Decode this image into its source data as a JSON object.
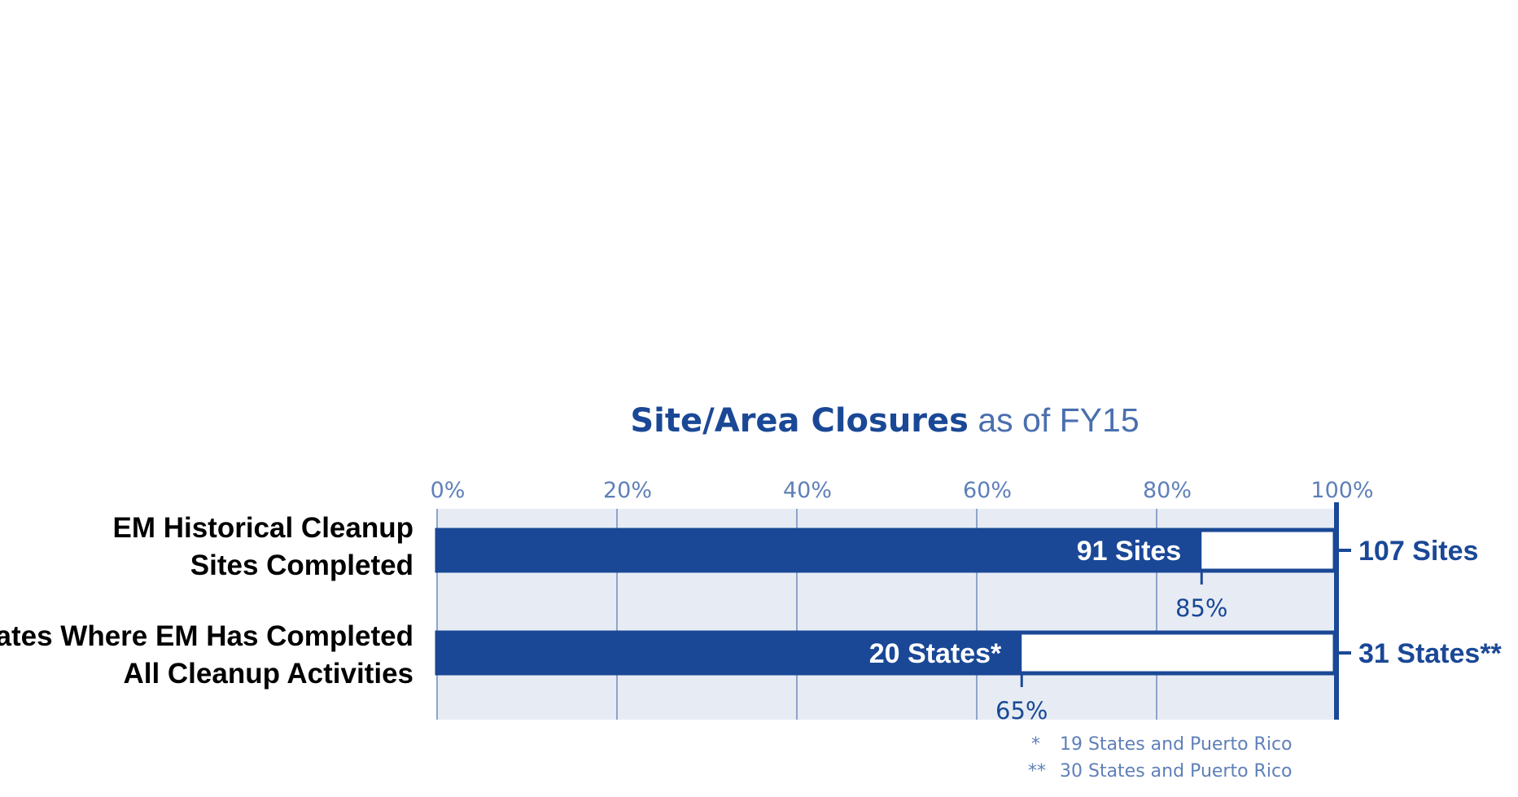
{
  "chart_data": {
    "type": "bar",
    "orientation": "horizontal",
    "title_bold": "Site/Area Closures",
    "title_rest": " as of FY15",
    "xlim": [
      0,
      100
    ],
    "ticks": [
      "0%",
      "20%",
      "40%",
      "60%",
      "80%",
      "100%"
    ],
    "tick_values": [
      0,
      20,
      40,
      60,
      80,
      100
    ],
    "grid": true,
    "bars": [
      {
        "category_lines": [
          "EM Historical Cleanup",
          "Sites Completed"
        ],
        "value_pct": 85,
        "pct_label": "85%",
        "completed_label": "91 Sites",
        "total_label": "107 Sites"
      },
      {
        "category_lines": [
          "States Where EM Has Completed",
          "All Cleanup Activities"
        ],
        "value_pct": 65,
        "pct_label": "65%",
        "completed_label": "20 States*",
        "total_label": "31 States**"
      }
    ],
    "footnotes": [
      {
        "marker": "*",
        "text": "19 States and Puerto Rico"
      },
      {
        "marker": "**",
        "text": "30 States and Puerto Rico"
      }
    ],
    "colors": {
      "bar_fill": "#1a4896",
      "plot_bg": "#e7ecf4",
      "grid": "#8ea4cb",
      "tick_text": "#5f80b8"
    }
  }
}
